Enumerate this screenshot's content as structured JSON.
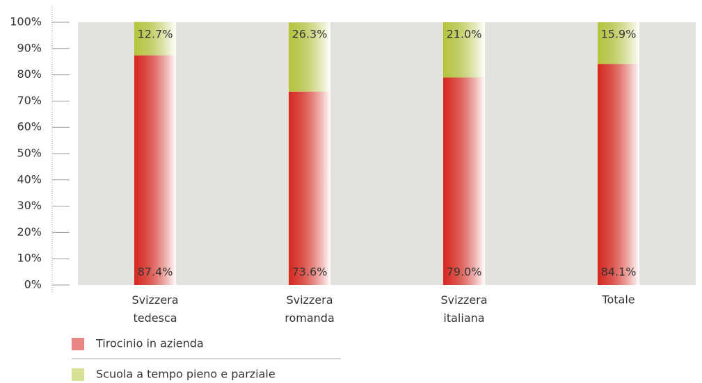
{
  "chart_data": {
    "type": "stacked_bar",
    "categories": [
      "Svizzera tedesca",
      "Svizzera romanda",
      "Svizzera italiana",
      "Totale"
    ],
    "series": [
      {
        "name": "Tirocinio in azienda",
        "color": "#d7261e",
        "values": [
          87.4,
          73.6,
          79.0,
          84.1
        ],
        "value_labels": [
          "87.4%",
          "73.6%",
          "79.0%",
          "84.1%"
        ]
      },
      {
        "name": "Scuola a tempo pieno e parziale",
        "color": "#b5c43c",
        "values": [
          12.7,
          26.3,
          21.0,
          15.9
        ],
        "value_labels": [
          "12.7%",
          "26.3%",
          "21.0%",
          "15.9%"
        ]
      }
    ],
    "ylim": [
      0,
      100
    ],
    "yticks": [
      {
        "value": 0,
        "label": "0%"
      },
      {
        "value": 10,
        "label": "10%"
      },
      {
        "value": 20,
        "label": "20%"
      },
      {
        "value": 30,
        "label": "30%"
      },
      {
        "value": 40,
        "label": "40%"
      },
      {
        "value": 50,
        "label": "50%"
      },
      {
        "value": 60,
        "label": "60%"
      },
      {
        "value": 70,
        "label": "70%"
      },
      {
        "value": 80,
        "label": "80%"
      },
      {
        "value": 90,
        "label": "90%"
      },
      {
        "value": 100,
        "label": "100%"
      }
    ]
  }
}
